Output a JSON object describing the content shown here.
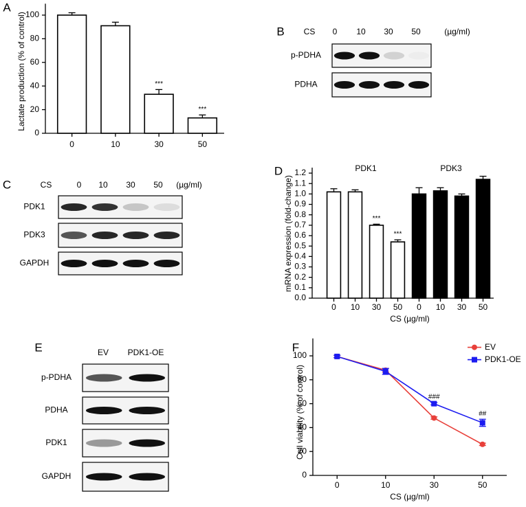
{
  "chart_data": [
    {
      "type": "bar",
      "label": "A",
      "ylabel": "Lactate production (% of control)",
      "categories": [
        "0",
        "10",
        "30",
        "50"
      ],
      "values": [
        100,
        91,
        33,
        13
      ],
      "errors": [
        2,
        3,
        4,
        2.5
      ],
      "significance": [
        null,
        null,
        "***",
        "***"
      ],
      "color": "#ffffff",
      "ylim": [
        0,
        105
      ],
      "yticks": [
        0,
        20,
        40,
        60,
        80,
        100
      ]
    },
    {
      "type": "grouped-bar",
      "label": "D",
      "ylabel": "mRNA expression (fold-change)",
      "xlabel": "CS (µg/ml)",
      "categories": [
        "0",
        "10",
        "30",
        "50"
      ],
      "series": [
        {
          "name": "PDK1",
          "color": "#ffffff",
          "values": [
            1.02,
            1.02,
            0.7,
            0.54
          ],
          "errors": [
            0.03,
            0.02,
            0.01,
            0.02
          ],
          "significance": [
            null,
            null,
            "***",
            "***"
          ]
        },
        {
          "name": "PDK3",
          "color": "#000000",
          "values": [
            1.0,
            1.03,
            0.98,
            1.14
          ],
          "errors": [
            0.06,
            0.03,
            0.02,
            0.03
          ],
          "significance": [
            null,
            null,
            null,
            null
          ]
        }
      ],
      "ylim": [
        0,
        1.2
      ],
      "yticks": [
        {
          "value": 0,
          "label": "0.0"
        },
        0.1,
        0.2,
        0.3,
        0.4,
        0.5,
        0.6,
        0.7,
        0.8,
        0.9,
        {
          "value": 1,
          "label": "1.0"
        },
        1.1,
        1.2
      ]
    },
    {
      "type": "line",
      "label": "F",
      "ylabel": "Cell viability (% of control)",
      "xlabel": "CS (µg/ml)",
      "categories": [
        "0",
        "10",
        "30",
        "50"
      ],
      "series": [
        {
          "name": "EV",
          "color": "#e8403a",
          "marker": "circle",
          "values": [
            99.5,
            88,
            48,
            26
          ],
          "errors": [
            1,
            1.5,
            1,
            1
          ],
          "significance": [
            null,
            null,
            null,
            null
          ]
        },
        {
          "name": "PDK1-OE",
          "color": "#1c1cf0",
          "marker": "square",
          "values": [
            99.5,
            87,
            60,
            44
          ],
          "errors": [
            1,
            2.5,
            1,
            3
          ],
          "significance": [
            null,
            null,
            "###",
            "##"
          ]
        }
      ],
      "legend": "upper right",
      "ylim": [
        0,
        110
      ],
      "yticks": [
        0,
        20,
        40,
        60,
        80,
        100
      ]
    }
  ],
  "blots": [
    {
      "label": "B",
      "header": "CS",
      "columns": [
        "0",
        "10",
        "30",
        "50"
      ],
      "unit": "(µg/ml)",
      "rows": [
        "p-PDHA",
        "PDHA"
      ]
    },
    {
      "label": "C",
      "header": "CS",
      "columns": [
        "0",
        "10",
        "30",
        "50"
      ],
      "unit": "(µg/ml)",
      "rows": [
        "PDK1",
        "PDK3",
        "GAPDH"
      ]
    },
    {
      "label": "E",
      "columns": [
        "EV",
        "PDK1-OE"
      ],
      "rows": [
        "p-PDHA",
        "PDHA",
        "PDK1",
        "GAPDH"
      ]
    }
  ]
}
